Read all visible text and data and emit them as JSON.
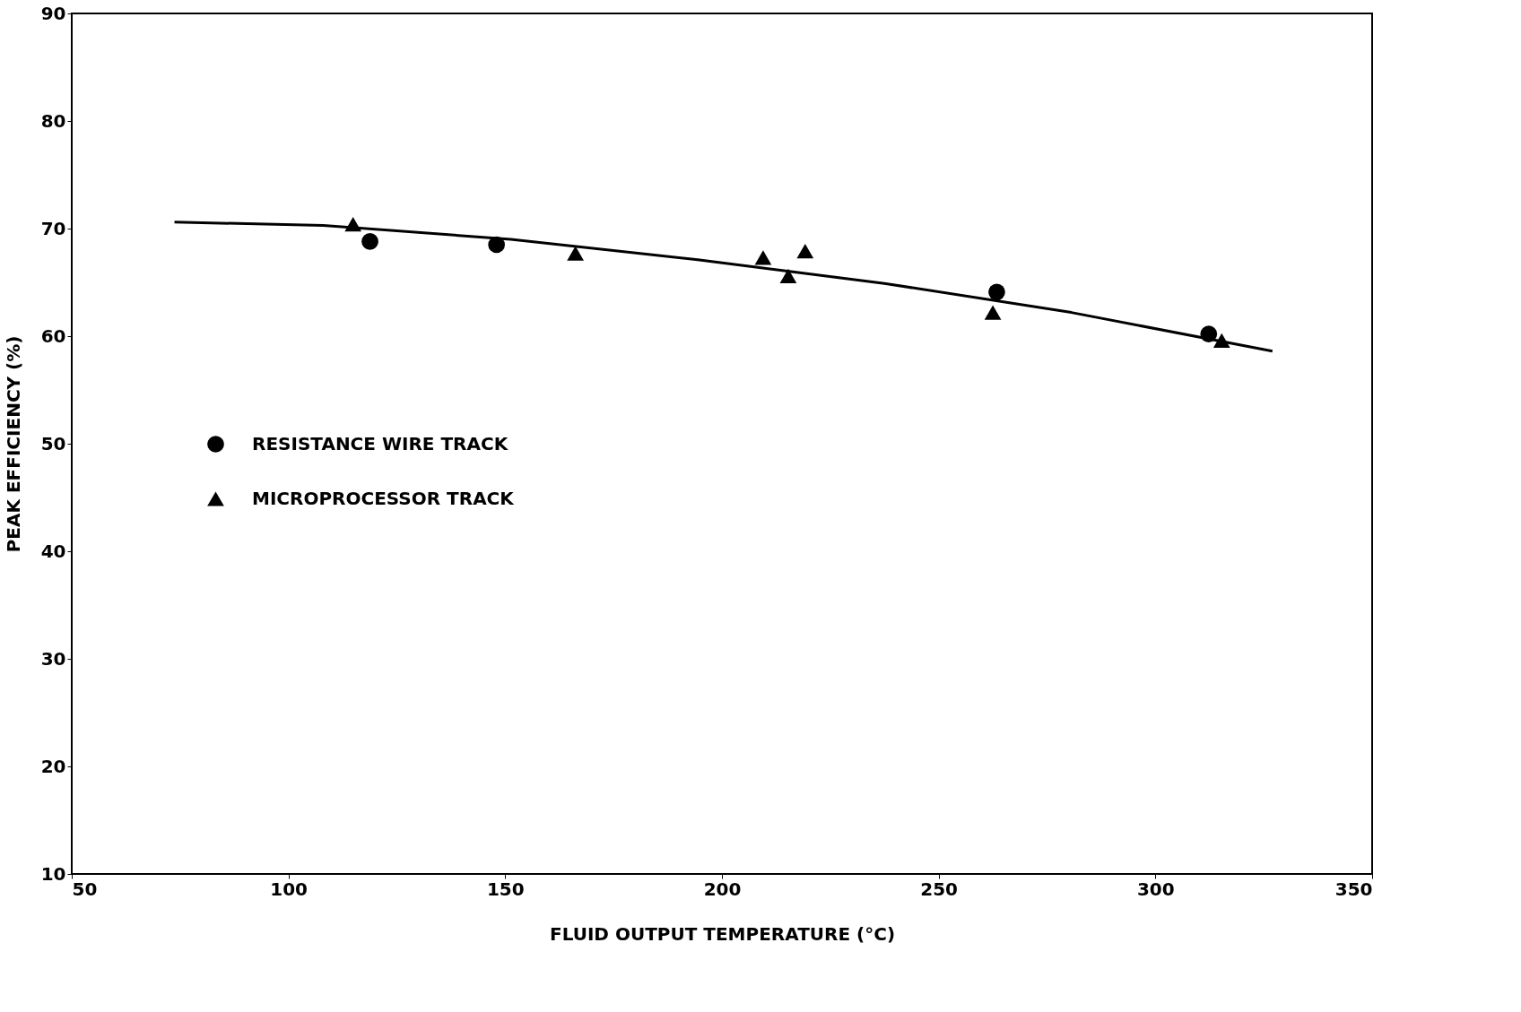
{
  "chart_data": {
    "type": "scatter",
    "xlabel": "FLUID OUTPUT TEMPERATURE (°C)",
    "ylabel": "PEAK EFFICIENCY (%)",
    "xlim": [
      50,
      350
    ],
    "xticks": [
      50,
      100,
      150,
      200,
      250,
      300,
      350
    ],
    "ylim": [
      10,
      90
    ],
    "yticks": [
      10,
      20,
      30,
      40,
      50,
      60,
      70,
      80,
      90
    ],
    "grid": false,
    "legend": "left",
    "series": [
      {
        "name": "RESISTANCE WIRE TRACK",
        "marker": "circle",
        "color": "#000000",
        "x": [
          118.8,
          148,
          263.4,
          312.3
        ],
        "values": [
          68.8,
          68.5,
          64.1,
          60.2
        ]
      },
      {
        "name": "MICROPROCESSOR TRACK",
        "marker": "triangle",
        "color": "#000000",
        "x": [
          114.9,
          166.2,
          209.5,
          215.3,
          219.2,
          262.5,
          315.3
        ],
        "values": [
          70.4,
          67.7,
          67.3,
          65.6,
          67.9,
          62.2,
          59.6
        ]
      },
      {
        "type": "line",
        "color": "#000000",
        "x": [
          73.7,
          108,
          151.3,
          194.4,
          237.5,
          280.6,
          327
        ],
        "values": [
          70.6,
          70.3,
          69.0,
          67.1,
          64.9,
          62.2,
          58.6
        ]
      }
    ]
  }
}
